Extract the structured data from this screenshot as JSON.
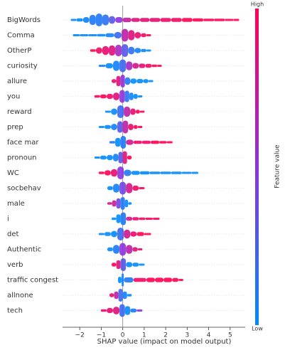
{
  "chart_data": {
    "type": "beeswarm",
    "xlabel": "SHAP value (impact on model output)",
    "xlim": [
      -2.8,
      5.7
    ],
    "xticks": [
      {
        "value": -2,
        "label": "−2"
      },
      {
        "value": -1,
        "label": "−1"
      },
      0,
      1,
      2,
      3,
      4,
      5
    ],
    "colorbar": {
      "label": "Feature value",
      "high": "High",
      "low": "Low",
      "low_color": "#008afb",
      "high_color": "#ff0052"
    },
    "series": [
      {
        "name": "BigWords",
        "x": [
          -2.3,
          -2,
          -1.7,
          -1.4,
          -1.1,
          -0.8,
          -0.5,
          -0.2,
          0.2,
          0.6,
          1,
          1.5,
          2,
          2.5,
          3,
          3.5,
          4,
          4.5,
          5,
          5.3
        ],
        "density": [
          0.1,
          0.25,
          0.45,
          0.8,
          1,
          0.85,
          0.6,
          0.45,
          0.35,
          0.3,
          0.3,
          0.3,
          0.3,
          0.3,
          0.3,
          0.25,
          0.2,
          0.2,
          0.15,
          0.1
        ],
        "feature_values": [
          0,
          0,
          0.05,
          0.1,
          0.1,
          0.15,
          0.3,
          0.5,
          0.75,
          0.85,
          0.9,
          0.9,
          0.95,
          0.95,
          1,
          1,
          1,
          1,
          1,
          1
        ]
      },
      {
        "name": "Comma",
        "x": [
          -2.2,
          -1.8,
          -1.4,
          -1,
          -0.6,
          -0.2,
          0.1,
          0.4,
          0.7,
          1,
          1.2
        ],
        "density": [
          0.08,
          0.12,
          0.15,
          0.2,
          0.3,
          0.5,
          1,
          0.8,
          0.5,
          0.3,
          0.1
        ],
        "feature_values": [
          0,
          0,
          0,
          0,
          0.05,
          0.2,
          0.7,
          0.85,
          0.9,
          0.95,
          1
        ]
      },
      {
        "name": "OtherP",
        "x": [
          -1.4,
          -1.1,
          -0.8,
          -0.5,
          -0.2,
          0.1,
          0.4,
          0.7,
          1,
          1.2
        ],
        "density": [
          0.2,
          0.5,
          0.7,
          0.8,
          0.9,
          1,
          0.6,
          0.4,
          0.25,
          0.1
        ],
        "feature_values": [
          1,
          0.95,
          0.9,
          0.85,
          0.6,
          0.3,
          0.15,
          0.05,
          0,
          0
        ]
      },
      {
        "name": "curiosity",
        "x": [
          -1,
          -0.6,
          -0.3,
          0,
          0.3,
          0.6,
          0.9,
          1.2,
          1.5,
          1.7
        ],
        "density": [
          0.15,
          0.4,
          0.8,
          1,
          0.7,
          0.45,
          0.35,
          0.3,
          0.2,
          0.1
        ],
        "feature_values": [
          0.05,
          0,
          0.05,
          0.2,
          0.6,
          0.8,
          0.9,
          0.95,
          1,
          1
        ]
      },
      {
        "name": "allure",
        "x": [
          -0.4,
          -0.2,
          0,
          0.2,
          0.5,
          0.8,
          1.1,
          1.3
        ],
        "density": [
          0.3,
          0.8,
          1,
          0.6,
          0.4,
          0.35,
          0.3,
          0.15
        ],
        "feature_values": [
          0.9,
          0.85,
          0.5,
          0.1,
          0,
          0,
          0,
          0
        ]
      },
      {
        "name": "you",
        "x": [
          -1.2,
          -0.9,
          -0.6,
          -0.3,
          0,
          0.2,
          0.4,
          0.6,
          0.8
        ],
        "density": [
          0.2,
          0.3,
          0.4,
          0.6,
          1,
          0.9,
          0.6,
          0.4,
          0.1
        ],
        "feature_values": [
          1,
          1,
          0.95,
          0.85,
          0.5,
          0.15,
          0.05,
          0,
          0
        ]
      },
      {
        "name": "reward",
        "x": [
          -0.7,
          -0.4,
          -0.1,
          0.2,
          0.5,
          0.7,
          0.9
        ],
        "density": [
          0.15,
          0.5,
          1,
          0.8,
          0.5,
          0.3,
          0.1
        ],
        "feature_values": [
          0,
          0,
          0.2,
          0.7,
          0.9,
          1,
          1
        ]
      },
      {
        "name": "prep",
        "x": [
          -1,
          -0.7,
          -0.4,
          -0.1,
          0.1,
          0.4,
          0.6,
          0.8
        ],
        "density": [
          0.15,
          0.3,
          0.5,
          0.9,
          1,
          0.5,
          0.3,
          0.1
        ],
        "feature_values": [
          0,
          0,
          0.05,
          0.3,
          0.7,
          0.9,
          1,
          1
        ]
      },
      {
        "name": "face mar",
        "x": [
          -0.5,
          -0.2,
          0,
          0.3,
          0.7,
          1.1,
          1.5,
          1.9,
          2.2
        ],
        "density": [
          0.2,
          0.7,
          1,
          0.4,
          0.25,
          0.25,
          0.25,
          0.2,
          0.1
        ],
        "feature_values": [
          0.1,
          0,
          0.1,
          0.8,
          0.9,
          0.95,
          1,
          1,
          1
        ]
      },
      {
        "name": "pronoun",
        "x": [
          -1.2,
          -0.9,
          -0.6,
          -0.3,
          -0.1,
          0.1,
          0.3
        ],
        "density": [
          0.15,
          0.3,
          0.4,
          0.6,
          0.9,
          1,
          0.3
        ],
        "feature_values": [
          0,
          0,
          0,
          0.05,
          0.3,
          0.85,
          1
        ]
      },
      {
        "name": "WC",
        "x": [
          -1,
          -0.7,
          -0.4,
          -0.1,
          0.2,
          0.6,
          1,
          1.5,
          2,
          2.5,
          3,
          3.4
        ],
        "density": [
          0.2,
          0.4,
          0.6,
          1,
          0.5,
          0.3,
          0.25,
          0.2,
          0.2,
          0.2,
          0.15,
          0.1
        ],
        "feature_values": [
          1,
          1,
          0.9,
          0.5,
          0.1,
          0,
          0,
          0,
          0,
          0,
          0,
          0
        ]
      },
      {
        "name": "socbehav",
        "x": [
          -0.6,
          -0.3,
          0,
          0.3,
          0.6,
          0.9
        ],
        "density": [
          0.3,
          0.7,
          1,
          0.8,
          0.4,
          0.1
        ],
        "feature_values": [
          0,
          0.05,
          0.4,
          0.8,
          0.95,
          1
        ]
      },
      {
        "name": "male",
        "x": [
          -0.6,
          -0.4,
          -0.2,
          0,
          0.2,
          0.3
        ],
        "density": [
          0.2,
          0.5,
          0.8,
          1,
          0.6,
          0.2
        ],
        "feature_values": [
          0.8,
          0.75,
          0.4,
          0.1,
          0,
          0
        ]
      },
      {
        "name": "i",
        "x": [
          -0.4,
          -0.2,
          0,
          0.3,
          0.6,
          0.9,
          1.2,
          1.6
        ],
        "density": [
          0.2,
          0.7,
          1,
          0.3,
          0.25,
          0.2,
          0.15,
          0.1
        ],
        "feature_values": [
          0,
          0,
          0.1,
          0.8,
          0.9,
          0.95,
          1,
          1
        ]
      },
      {
        "name": "det",
        "x": [
          -1,
          -0.7,
          -0.4,
          -0.1,
          0.2,
          0.5,
          0.8,
          1.2
        ],
        "density": [
          0.15,
          0.3,
          0.5,
          1,
          0.7,
          0.4,
          0.3,
          0.15
        ],
        "feature_values": [
          0,
          0,
          0,
          0.2,
          0.8,
          0.9,
          1,
          1
        ]
      },
      {
        "name": "Authentic",
        "x": [
          -0.6,
          -0.3,
          0,
          0.3,
          0.6,
          0.8
        ],
        "density": [
          0.3,
          0.7,
          1,
          0.7,
          0.35,
          0.1
        ],
        "feature_values": [
          0,
          0.1,
          0.5,
          0.7,
          0.85,
          0.9
        ]
      },
      {
        "name": "verb",
        "x": [
          -0.4,
          -0.2,
          0,
          0.3,
          0.6,
          0.9
        ],
        "density": [
          0.3,
          0.7,
          1,
          0.4,
          0.3,
          0.1
        ],
        "feature_values": [
          1,
          0.85,
          0.3,
          0,
          0,
          0
        ]
      },
      {
        "name": "traffic congest",
        "x": [
          -0.1,
          0,
          0.1,
          0.9,
          1.3,
          1.7,
          2.1,
          2.5,
          2.7
        ],
        "density": [
          0.5,
          1,
          0.4,
          0.3,
          0.35,
          0.35,
          0.35,
          0.3,
          0.1
        ],
        "feature_values": [
          0,
          0.05,
          0.1,
          0.95,
          1,
          1,
          1,
          1,
          1
        ]
      },
      {
        "name": "allnone",
        "x": [
          -0.5,
          -0.3,
          -0.1,
          0.1,
          0.3
        ],
        "density": [
          0.3,
          0.6,
          1,
          0.6,
          0.2
        ],
        "feature_values": [
          0.9,
          0.7,
          0.2,
          0.05,
          0
        ]
      },
      {
        "name": "tech",
        "x": [
          -0.9,
          -0.6,
          -0.3,
          0,
          0.2,
          0.5,
          0.8
        ],
        "density": [
          0.2,
          0.4,
          0.6,
          1,
          0.7,
          0.3,
          0.1
        ],
        "feature_values": [
          0.9,
          0.9,
          0.85,
          0.2,
          0,
          0.1,
          0.5
        ]
      }
    ]
  }
}
